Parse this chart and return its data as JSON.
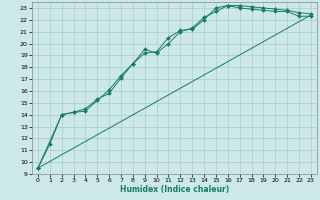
{
  "xlabel": "Humidex (Indice chaleur)",
  "bg_color": "#cce8e8",
  "grid_color": "#aacccc",
  "line_color": "#1a7a6e",
  "xlim": [
    -0.5,
    23.5
  ],
  "ylim": [
    9,
    23.5
  ],
  "xticks": [
    0,
    1,
    2,
    3,
    4,
    5,
    6,
    7,
    8,
    9,
    10,
    11,
    12,
    13,
    14,
    15,
    16,
    17,
    18,
    19,
    20,
    21,
    22,
    23
  ],
  "yticks": [
    9,
    10,
    11,
    12,
    13,
    14,
    15,
    16,
    17,
    18,
    19,
    20,
    21,
    22,
    23
  ],
  "series1_x": [
    0,
    1,
    2,
    3,
    4,
    5,
    6,
    7,
    8,
    9,
    10,
    11,
    12,
    13,
    14,
    15,
    16,
    17,
    18,
    19,
    20,
    21,
    22,
    23
  ],
  "series1_y": [
    9.5,
    11.5,
    14.0,
    14.2,
    14.3,
    15.2,
    16.1,
    17.3,
    18.3,
    19.2,
    19.3,
    20.5,
    21.1,
    21.2,
    22.0,
    23.0,
    23.2,
    23.2,
    23.1,
    23.0,
    22.9,
    22.8,
    22.6,
    22.5
  ],
  "series2_x": [
    0,
    2,
    3,
    4,
    5,
    6,
    7,
    8,
    9,
    10,
    11,
    12,
    13,
    14,
    15,
    16,
    17,
    18,
    19,
    20,
    21,
    22,
    23
  ],
  "series2_y": [
    9.5,
    14.0,
    14.2,
    14.5,
    15.3,
    15.8,
    17.1,
    18.3,
    19.5,
    19.2,
    20.0,
    21.0,
    21.3,
    22.2,
    22.7,
    23.2,
    23.0,
    22.9,
    22.8,
    22.7,
    22.7,
    22.3,
    22.3
  ],
  "series3_x": [
    0,
    23
  ],
  "series3_y": [
    9.5,
    22.4
  ]
}
